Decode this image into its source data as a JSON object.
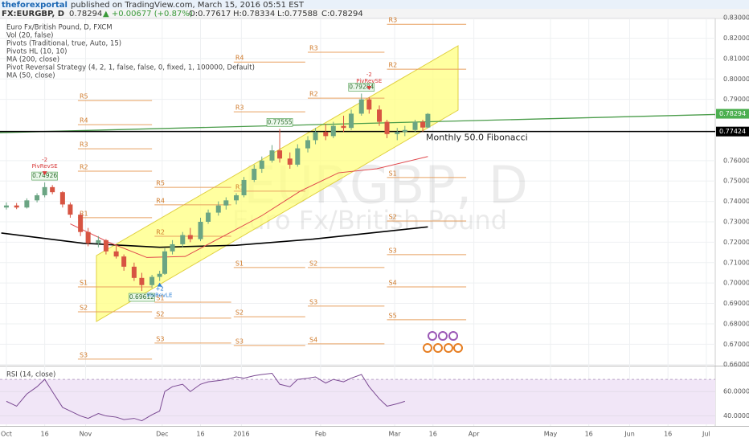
{
  "header": {
    "author": "theforexportal",
    "published": "published on TradingView.com, March 15, 2016 05:51 EST",
    "symbol": "FX:EURGBP, D",
    "price": "0.78294",
    "change": "▲ +0.00677 (+0.87%)",
    "ohlc": [
      "O:0.77617",
      "H:0.78334",
      "L:0.77588",
      "C:0.78294"
    ]
  },
  "legend": [
    "Euro Fx/British Pound, D, FXCM",
    "Vol (20, false)",
    "Pivots (Traditional, true, Auto, 15)",
    "Pivots HL (10, 10)",
    "MA (200, close)",
    "Pivot Reversal Strategy (4, 2, 1, false, false, 0, fixed, 1, 100000, Default)",
    "MA (50, close)"
  ],
  "watermark": {
    "symbol": "EURGBP, D",
    "name": "Euro Fx/British Pound"
  },
  "chart_data": {
    "type": "candlestick",
    "xlim": [
      -2.5,
      277.5
    ],
    "ylim": [
      0.6595,
      0.8387
    ],
    "grid": true,
    "xticks": [
      {
        "value": 0,
        "label": "Oct"
      },
      {
        "value": 15,
        "label": "16"
      },
      {
        "value": 31,
        "label": "Nov"
      },
      {
        "value": 61,
        "label": "Dec"
      },
      {
        "value": 76,
        "label": "16"
      },
      {
        "value": 92,
        "label": "2016"
      },
      {
        "value": 123,
        "label": "Feb"
      },
      {
        "value": 152,
        "label": "Mar"
      },
      {
        "value": 167,
        "label": "16"
      },
      {
        "value": 183,
        "label": "Apr"
      },
      {
        "value": 213,
        "label": "May"
      },
      {
        "value": 228,
        "label": "16"
      },
      {
        "value": 244,
        "label": "Jun"
      },
      {
        "value": 259,
        "label": "16"
      },
      {
        "value": 274,
        "label": "Jul"
      }
    ],
    "yticks": [
      {
        "value": 0.66,
        "label": "0.66000"
      },
      {
        "value": 0.67,
        "label": "0.67000"
      },
      {
        "value": 0.68,
        "label": "0.68000"
      },
      {
        "value": 0.69,
        "label": "0.69000"
      },
      {
        "value": 0.7,
        "label": "0.70000"
      },
      {
        "value": 0.71,
        "label": "0.71000"
      },
      {
        "value": 0.72,
        "label": "0.72000"
      },
      {
        "value": 0.73,
        "label": "0.73000"
      },
      {
        "value": 0.74,
        "label": "0.74000"
      },
      {
        "value": 0.75,
        "label": "0.75000"
      },
      {
        "value": 0.76,
        "label": "0.76000"
      },
      {
        "value": 0.79,
        "label": "0.79000"
      },
      {
        "value": 0.8,
        "label": "0.80000"
      },
      {
        "value": 0.81,
        "label": "0.81000"
      },
      {
        "value": 0.82,
        "label": "0.82000"
      },
      {
        "value": 0.83,
        "label": "0.83000"
      }
    ],
    "up_color": "#6ba583",
    "down_color": "#d75442",
    "candles": [
      [
        0,
        0.737,
        0.7395,
        0.736,
        0.738
      ],
      [
        4,
        0.738,
        0.7392,
        0.7362,
        0.737
      ],
      [
        8,
        0.737,
        0.7415,
        0.7365,
        0.7405
      ],
      [
        12,
        0.7405,
        0.744,
        0.7395,
        0.743
      ],
      [
        15,
        0.743,
        0.74926,
        0.742,
        0.747
      ],
      [
        18,
        0.747,
        0.748,
        0.7435,
        0.7445
      ],
      [
        22,
        0.7445,
        0.745,
        0.737,
        0.7385
      ],
      [
        25,
        0.7385,
        0.7395,
        0.732,
        0.7335
      ],
      [
        29,
        0.7335,
        0.7345,
        0.723,
        0.725
      ],
      [
        32,
        0.725,
        0.727,
        0.718,
        0.7195
      ],
      [
        36,
        0.7195,
        0.723,
        0.7175,
        0.721
      ],
      [
        39,
        0.721,
        0.7215,
        0.714,
        0.7155
      ],
      [
        43,
        0.7155,
        0.719,
        0.712,
        0.713
      ],
      [
        46,
        0.713,
        0.714,
        0.706,
        0.708
      ],
      [
        50,
        0.708,
        0.71,
        0.701,
        0.7025
      ],
      [
        53,
        0.7025,
        0.705,
        0.69612,
        0.699
      ],
      [
        57,
        0.699,
        0.704,
        0.6975,
        0.703
      ],
      [
        60,
        0.703,
        0.706,
        0.701,
        0.7045
      ],
      [
        62,
        0.7045,
        0.717,
        0.704,
        0.7155
      ],
      [
        65,
        0.7155,
        0.721,
        0.714,
        0.719
      ],
      [
        69,
        0.719,
        0.725,
        0.7175,
        0.7235
      ],
      [
        72,
        0.7235,
        0.727,
        0.72,
        0.7215
      ],
      [
        76,
        0.7215,
        0.732,
        0.7205,
        0.73
      ],
      [
        79,
        0.73,
        0.736,
        0.729,
        0.7345
      ],
      [
        83,
        0.7345,
        0.74,
        0.733,
        0.738
      ],
      [
        86,
        0.738,
        0.742,
        0.736,
        0.7405
      ],
      [
        90,
        0.7405,
        0.744,
        0.7385,
        0.743
      ],
      [
        93,
        0.743,
        0.752,
        0.742,
        0.7505
      ],
      [
        97,
        0.7505,
        0.758,
        0.7495,
        0.756
      ],
      [
        100,
        0.756,
        0.762,
        0.754,
        0.76
      ],
      [
        104,
        0.76,
        0.7676,
        0.759,
        0.765
      ],
      [
        107,
        0.765,
        0.77555,
        0.759,
        0.761
      ],
      [
        111,
        0.761,
        0.764,
        0.756,
        0.758
      ],
      [
        114,
        0.758,
        0.768,
        0.757,
        0.766
      ],
      [
        118,
        0.766,
        0.772,
        0.764,
        0.77
      ],
      [
        121,
        0.77,
        0.776,
        0.768,
        0.774
      ],
      [
        125,
        0.774,
        0.778,
        0.77,
        0.772
      ],
      [
        128,
        0.772,
        0.779,
        0.771,
        0.777
      ],
      [
        132,
        0.777,
        0.782,
        0.774,
        0.776
      ],
      [
        135,
        0.776,
        0.785,
        0.775,
        0.783
      ],
      [
        139,
        0.783,
        0.79284,
        0.782,
        0.79
      ],
      [
        142,
        0.79,
        0.791,
        0.783,
        0.785
      ],
      [
        146,
        0.785,
        0.787,
        0.777,
        0.779
      ],
      [
        149,
        0.779,
        0.78,
        0.771,
        0.773
      ],
      [
        153,
        0.773,
        0.776,
        0.77,
        0.774
      ],
      [
        156,
        0.774,
        0.777,
        0.772,
        0.775
      ],
      [
        160,
        0.775,
        0.78,
        0.774,
        0.779
      ],
      [
        163,
        0.779,
        0.78,
        0.774,
        0.7762
      ],
      [
        165,
        0.7762,
        0.7833,
        0.7759,
        0.7829
      ]
    ],
    "series": [
      {
        "name": "MA (200, close)",
        "color": "#000000",
        "x": [
          -2,
          30,
          60,
          90,
          120,
          150,
          165
        ],
        "values": [
          0.7245,
          0.7195,
          0.7175,
          0.7185,
          0.7215,
          0.7255,
          0.7275
        ]
      },
      {
        "name": "MA (50, close)",
        "color": "#e0474c",
        "x": [
          25,
          40,
          55,
          70,
          85,
          100,
          115,
          130,
          145,
          165
        ],
        "values": [
          0.729,
          0.72,
          0.7125,
          0.713,
          0.723,
          0.733,
          0.745,
          0.754,
          0.756,
          0.762
        ]
      }
    ],
    "trendline": {
      "color": "#4a9c4a",
      "x": [
        -2.5,
        277.5
      ],
      "values": [
        0.7737,
        0.7826
      ]
    },
    "fib_line": {
      "value": 0.77424,
      "text": "Monthly 50.0 Fibonacci"
    },
    "price_tags": [
      {
        "value": 0.78294,
        "color": "#4caf50"
      },
      {
        "value": 0.77424,
        "color": "#000000"
      }
    ],
    "annotations": [
      {
        "day": 15,
        "value": 0.74926
      },
      {
        "day": 53,
        "value": 0.69612
      },
      {
        "day": 107,
        "value": 0.77555
      },
      {
        "day": 139,
        "value": 0.79284
      }
    ],
    "signals": [
      {
        "day": 15,
        "text": "PivRevSE",
        "qty": "-2"
      },
      {
        "day": 60,
        "text": "PivRevLE",
        "qty": "+2"
      },
      {
        "day": 142,
        "text": "PivRevSE",
        "qty": "-2"
      }
    ],
    "pivot_color": "#e8a060",
    "pivots": [
      {
        "label": "R5",
        "from": 28,
        "to": 57,
        "value": 0.7894
      },
      {
        "label": "R4",
        "from": 28,
        "to": 57,
        "value": 0.7776
      },
      {
        "label": "R3",
        "from": 28,
        "to": 57,
        "value": 0.7658
      },
      {
        "label": "R2",
        "from": 28,
        "to": 57,
        "value": 0.7548
      },
      {
        "label": "R1",
        "from": 28,
        "to": 57,
        "value": 0.732
      },
      {
        "label": "S1",
        "from": 28,
        "to": 57,
        "value": 0.6981
      },
      {
        "label": "S2",
        "from": 28,
        "to": 57,
        "value": 0.6859
      },
      {
        "label": "S3",
        "from": 28,
        "to": 57,
        "value": 0.6627
      },
      {
        "label": "R5",
        "from": 58,
        "to": 88,
        "value": 0.7469
      },
      {
        "label": "R4",
        "from": 58,
        "to": 88,
        "value": 0.7383
      },
      {
        "label": "R2",
        "from": 58,
        "to": 88,
        "value": 0.7229
      },
      {
        "label": "S1",
        "from": 58,
        "to": 88,
        "value": 0.6906
      },
      {
        "label": "S2",
        "from": 58,
        "to": 88,
        "value": 0.6828
      },
      {
        "label": "S3",
        "from": 58,
        "to": 88,
        "value": 0.6706
      },
      {
        "label": "R4",
        "from": 89,
        "to": 117,
        "value": 0.8083
      },
      {
        "label": "R3",
        "from": 89,
        "to": 117,
        "value": 0.7839
      },
      {
        "label": "R1",
        "from": 89,
        "to": 117,
        "value": 0.745
      },
      {
        "label": "S1",
        "from": 89,
        "to": 117,
        "value": 0.7076
      },
      {
        "label": "S2",
        "from": 89,
        "to": 117,
        "value": 0.6835
      },
      {
        "label": "S3",
        "from": 89,
        "to": 117,
        "value": 0.6694
      },
      {
        "label": "R3",
        "from": 118,
        "to": 148,
        "value": 0.8131
      },
      {
        "label": "R2",
        "from": 118,
        "to": 148,
        "value": 0.7906
      },
      {
        "label": "S2",
        "from": 118,
        "to": 148,
        "value": 0.7076
      },
      {
        "label": "S3",
        "from": 118,
        "to": 148,
        "value": 0.6887
      },
      {
        "label": "S4",
        "from": 118,
        "to": 148,
        "value": 0.6702
      },
      {
        "label": "R3",
        "from": 149,
        "to": 180,
        "value": 0.8268
      },
      {
        "label": "R2",
        "from": 149,
        "to": 180,
        "value": 0.8048
      },
      {
        "label": "S1",
        "from": 149,
        "to": 180,
        "value": 0.7517
      },
      {
        "label": "S2",
        "from": 149,
        "to": 180,
        "value": 0.7304
      },
      {
        "label": "S3",
        "from": 149,
        "to": 180,
        "value": 0.7139
      },
      {
        "label": "S4",
        "from": 149,
        "to": 180,
        "value": 0.6981
      },
      {
        "label": "S5",
        "from": 149,
        "to": 180,
        "value": 0.682
      }
    ],
    "rsi": {
      "title": "RSI (14, close)",
      "color": "#7b4a93",
      "band_color": "#f1e6f7",
      "ylim": [
        33.1,
        79.3
      ],
      "band": [
        30,
        70
      ],
      "yticks": [
        {
          "value": 40,
          "label": "40.0000"
        },
        {
          "value": 60,
          "label": "60.0000"
        }
      ],
      "values": [
        52,
        48,
        58,
        64,
        70,
        60,
        47,
        44,
        40,
        38,
        42,
        40,
        39,
        37,
        38,
        36,
        41,
        44,
        60,
        64,
        66,
        60,
        66,
        68,
        69,
        70,
        72,
        71,
        73,
        74,
        75,
        66,
        64,
        70,
        71,
        72,
        67,
        70,
        68,
        71,
        74,
        64,
        54,
        48,
        50,
        52
      ]
    }
  }
}
